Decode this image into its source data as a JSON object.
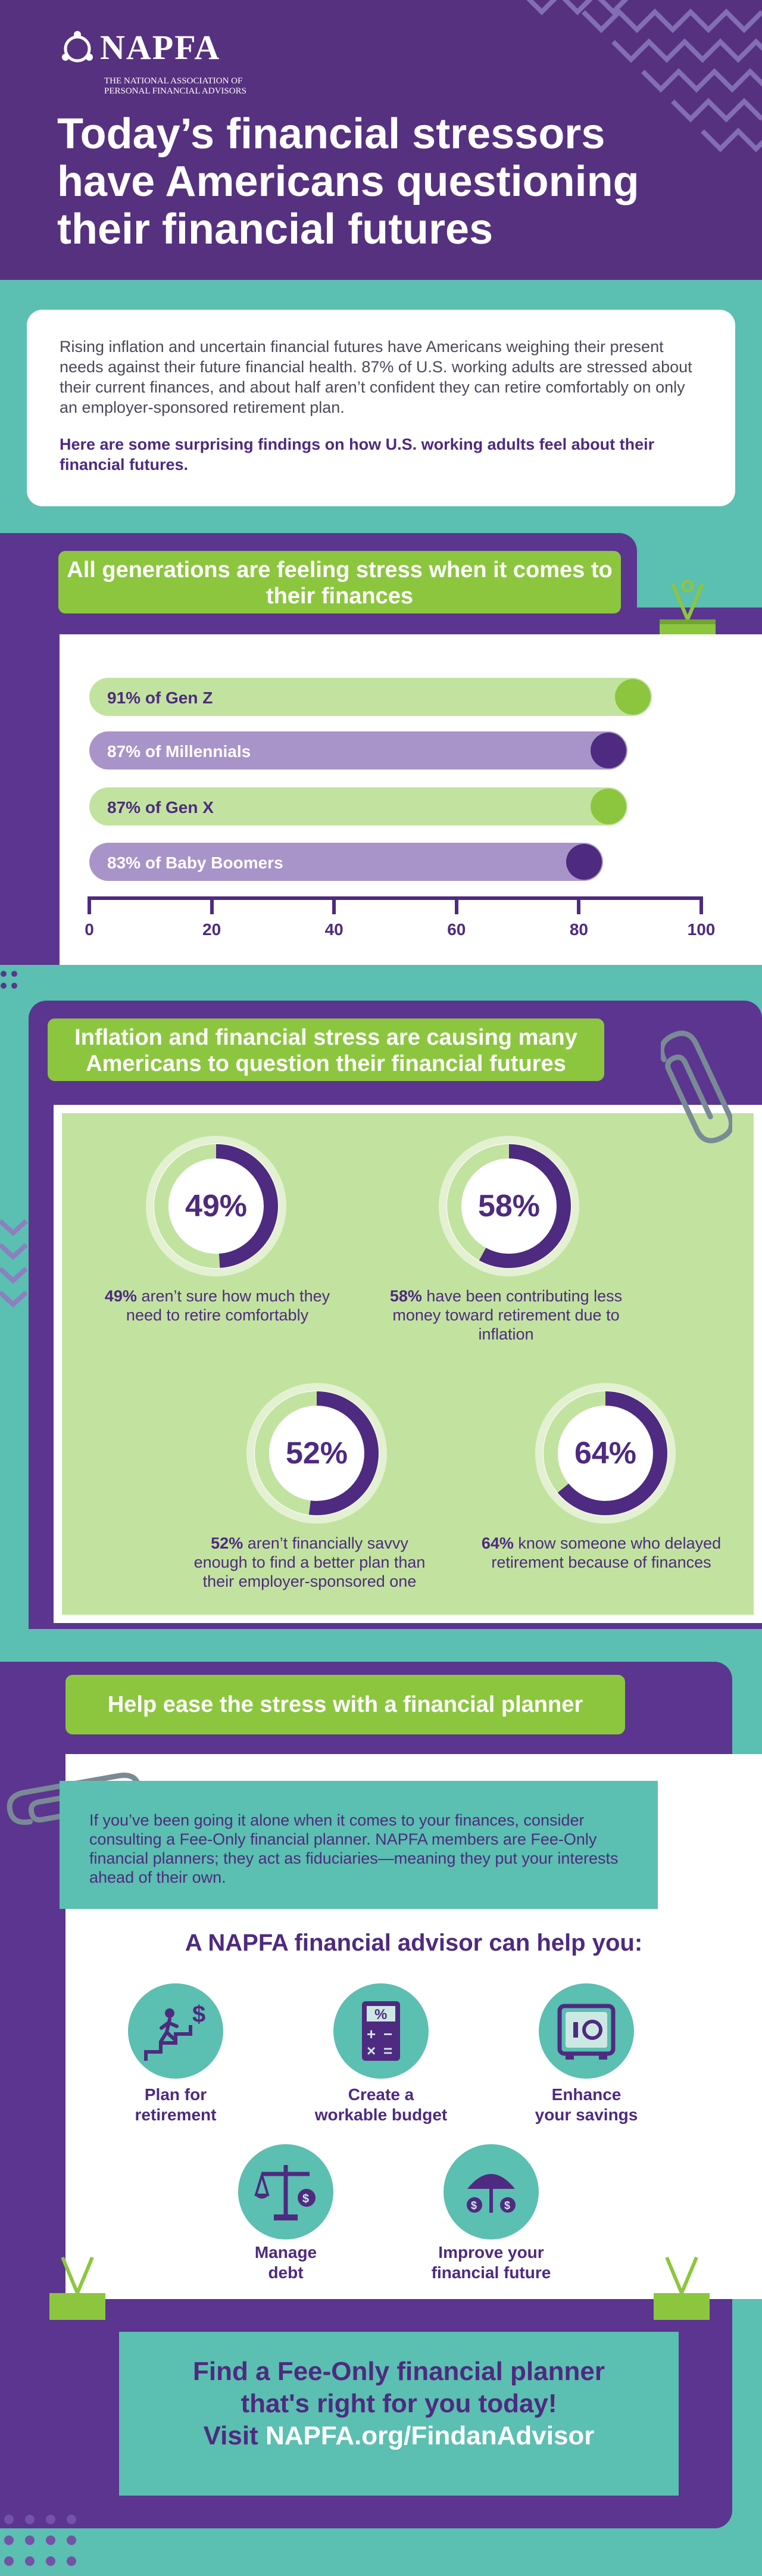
{
  "header": {
    "logo_word": "NAPFA",
    "logo_sub_1": "THE NATIONAL ASSOCIATION OF",
    "logo_sub_2": "PERSONAL FINANCIAL ADVISORS",
    "title": "Today’s financial stressors have Americans questioning their financial futures"
  },
  "intro": {
    "text": "Rising inflation and uncertain financial futures have Americans weighing their present needs against their future financial health. 87% of U.S. working adults are stressed about their current finances, and about half aren’t confident they can retire comfortably on only an employer-sponsored retirement plan.",
    "bold": "Here are some surprising findings on how U.S. working adults feel about their financial futures."
  },
  "section1": {
    "title": "All generations are feeling stress when it comes to their finances"
  },
  "chart_data": {
    "type": "bar",
    "orientation": "horizontal",
    "title": "All generations are feeling stress when it comes to their finances",
    "categories": [
      "Gen Z",
      "Millennials",
      "Gen X",
      "Baby Boomers"
    ],
    "labels": [
      "91% of Gen Z",
      "87% of Millennials",
      "87% of Gen X",
      "83% of Baby Boomers"
    ],
    "values": [
      91,
      87,
      87,
      83
    ],
    "colors": [
      "#c2e39f",
      "#a894c9",
      "#c2e39f",
      "#a894c9"
    ],
    "dot_colors": [
      "#8cc63f",
      "#4e2a80",
      "#8cc63f",
      "#4e2a80"
    ],
    "xlim": [
      0,
      100
    ],
    "ticks": [
      "0",
      "20",
      "40",
      "60",
      "80",
      "100"
    ]
  },
  "section2": {
    "title": "Inflation and financial stress are causing many Americans to question their financial futures",
    "stats": [
      {
        "value": 49,
        "pct": "49%",
        "bold": "49%",
        "rest": " aren’t sure how much they need to retire comfortably"
      },
      {
        "value": 58,
        "pct": "58%",
        "bold": "58%",
        "rest": " have been contributing less money toward retirement due to inflation"
      },
      {
        "value": 52,
        "pct": "52%",
        "bold": "52%",
        "rest": " aren’t financially savvy enough to find a better plan than their employer-sponsored one"
      },
      {
        "value": 64,
        "pct": "64%",
        "bold": "64%",
        "rest": " know someone who delayed retirement because of finances"
      }
    ]
  },
  "section3": {
    "title": "Help ease the stress with a financial planner",
    "teal_text": "If you’ve been going it alone when it comes to your finances, consider consulting a Fee-Only financial planner. NAPFA members are Fee-Only financial planners; they act as fiduciaries—meaning they put your interests ahead of their own.",
    "help_title": "A NAPFA financial advisor can help you:",
    "items": [
      {
        "icon": "retirement-stairs-icon",
        "l1": "Plan for",
        "l2": "retirement"
      },
      {
        "icon": "calculator-icon",
        "l1": "Create a",
        "l2": "workable budget"
      },
      {
        "icon": "safe-icon",
        "l1": "Enhance",
        "l2": "your savings"
      },
      {
        "icon": "scale-icon",
        "l1": "Manage",
        "l2": "debt"
      },
      {
        "icon": "umbrella-icon",
        "l1": "Improve your",
        "l2": "financial future"
      }
    ]
  },
  "cta": {
    "line1": "Find a Fee-Only financial planner",
    "line2": "that's right for you today!",
    "line3_a": "Visit ",
    "line3_b": "NAPFA.org/FindanAdvisor"
  },
  "colors": {
    "purple": "#5b3590",
    "teal": "#5bbfb1",
    "green": "#8cc63f",
    "light_green": "#c2e39f",
    "lavender": "#a894c9"
  }
}
